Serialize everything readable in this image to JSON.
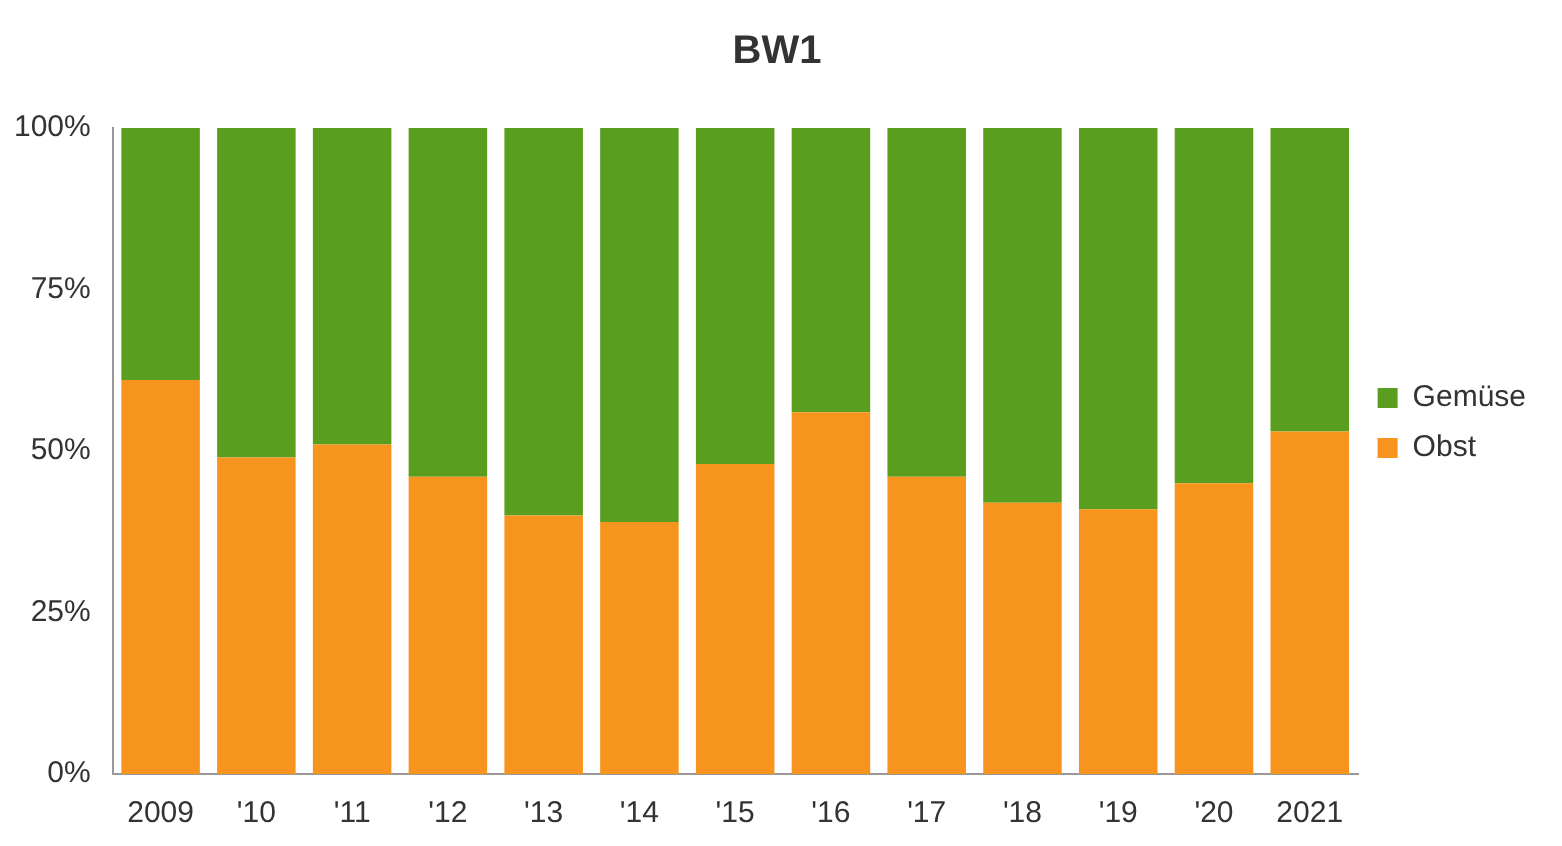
{
  "chart_data": {
    "type": "bar",
    "title": "BW1",
    "stacked": true,
    "categories": [
      "2009",
      "'10",
      "'11",
      "'12",
      "'13",
      "'14",
      "'15",
      "'16",
      "'17",
      "'18",
      "'19",
      "'20",
      "2021"
    ],
    "series": [
      {
        "name": "Obst",
        "color": "#f7941d",
        "values": [
          61,
          49,
          51,
          46,
          40,
          39,
          48,
          56,
          46,
          42,
          41,
          45,
          53
        ]
      },
      {
        "name": "Gemüse",
        "color": "#5a9e1f",
        "values": [
          39,
          51,
          49,
          54,
          60,
          61,
          52,
          44,
          54,
          58,
          59,
          55,
          47
        ]
      }
    ],
    "ylim": [
      0,
      100
    ],
    "yticks": [
      {
        "value": 0,
        "label": "0%"
      },
      {
        "value": 25,
        "label": "25%"
      },
      {
        "value": 50,
        "label": "50%"
      },
      {
        "value": 75,
        "label": "75%"
      },
      {
        "value": 100,
        "label": "100%"
      }
    ],
    "grid": false,
    "legend": "right"
  }
}
